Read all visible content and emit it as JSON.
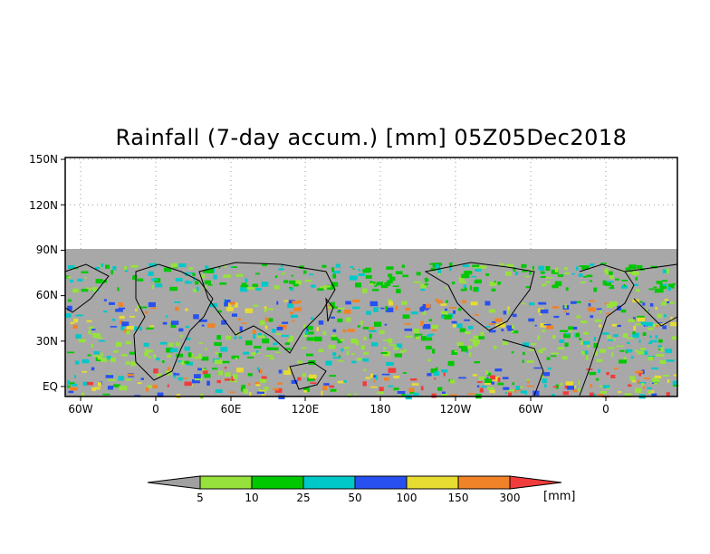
{
  "title": "Rainfall (7-day accum.) [mm] 05Z05Dec2018",
  "y_ticks": [
    "150N",
    "120N",
    "90N",
    "60N",
    "30N",
    "EQ"
  ],
  "x_ticks": [
    "60W",
    "0",
    "60E",
    "120E",
    "180",
    "120W",
    "60W",
    "0"
  ],
  "colorbar": {
    "labels": [
      "5",
      "10",
      "25",
      "50",
      "100",
      "150",
      "300"
    ],
    "unit": "[mm]",
    "colors": [
      "#a0a0a0",
      "#96e13c",
      "#00c800",
      "#00c8c8",
      "#2850f0",
      "#e6dc32",
      "#f08228",
      "#f03c3c"
    ]
  },
  "map": {
    "ocean_land_no_rain_color": "#a8a8a8",
    "background_color": "#ffffff",
    "grid": "dotted"
  }
}
